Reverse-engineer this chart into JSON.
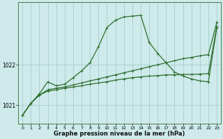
{
  "xlabel": "Graphe pression niveau de la mer (hPa)",
  "hours": [
    0,
    1,
    2,
    3,
    4,
    5,
    6,
    7,
    8,
    9,
    10,
    11,
    12,
    13,
    14,
    15,
    16,
    17,
    18,
    19,
    20,
    21,
    22,
    23
  ],
  "line1": [
    1020.75,
    1021.05,
    1021.25,
    1021.35,
    1021.38,
    1021.42,
    1021.45,
    1021.48,
    1021.52,
    1021.55,
    1021.58,
    1021.62,
    1021.65,
    1021.68,
    1021.7,
    1021.72,
    1021.73,
    1021.75,
    1021.75,
    1021.76,
    1021.76,
    1021.77,
    1021.78,
    1022.95
  ],
  "line2": [
    1020.75,
    1021.05,
    1021.28,
    1021.58,
    1021.48,
    1021.52,
    1021.68,
    1021.85,
    1022.05,
    1022.45,
    1022.92,
    1023.1,
    1023.18,
    1023.2,
    1023.22,
    1022.55,
    1022.28,
    1022.05,
    1021.82,
    1021.72,
    1021.65,
    1021.6,
    1021.58,
    1022.92
  ],
  "line3": [
    1020.75,
    1021.05,
    1021.25,
    1021.38,
    1021.42,
    1021.45,
    1021.5,
    1021.55,
    1021.6,
    1021.65,
    1021.7,
    1021.75,
    1021.8,
    1021.85,
    1021.9,
    1021.95,
    1022.0,
    1022.05,
    1022.1,
    1022.15,
    1022.18,
    1022.22,
    1022.25,
    1023.05
  ],
  "bg_color": "#ceeaea",
  "line_color1": "#2d6e2d",
  "line_color2": "#2d6e2d",
  "line_color3": "#2d6e2d",
  "grid_color": "#9fc8c8",
  "ylim": [
    1020.55,
    1023.55
  ],
  "yticks": [
    1021,
    1022
  ],
  "figsize": [
    3.2,
    2.0
  ],
  "dpi": 100
}
